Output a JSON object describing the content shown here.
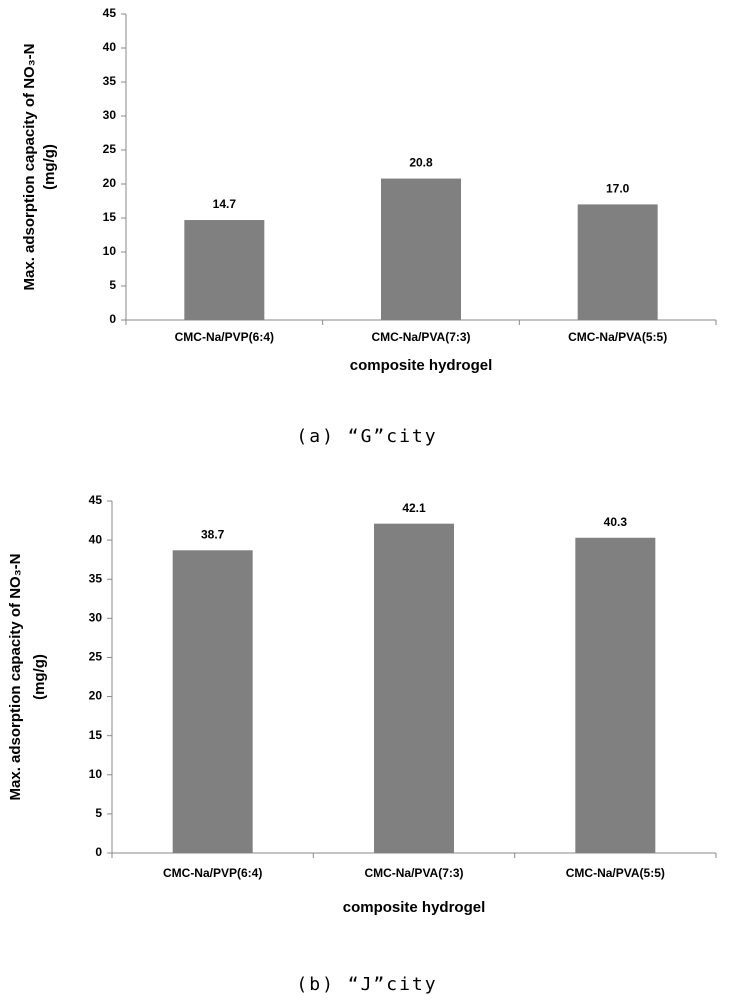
{
  "chart_data": [
    {
      "type": "bar",
      "ylabel": [
        "Max. adsorption capacity of NO₃-N",
        "(mg/g)"
      ],
      "xlabel": "composite hydrogel",
      "categories": [
        "CMC-Na/PVP(6:4)",
        "CMC-Na/PVA(7:3)",
        "CMC-Na/PVA(5:5)"
      ],
      "values": [
        14.7,
        20.8,
        17.0
      ],
      "value_labels": [
        "14.7",
        "20.8",
        "17.0"
      ],
      "color": "#808080",
      "ylim": [
        0,
        45
      ],
      "yticks": [
        0,
        5,
        10,
        15,
        20,
        25,
        30,
        35,
        40,
        45
      ],
      "grid": false,
      "caption": "(a) “G”city"
    },
    {
      "type": "bar",
      "ylabel": [
        "Max. adsorption capacity of NO₃-N",
        "(mg/g)"
      ],
      "xlabel": "composite hydrogel",
      "categories": [
        "CMC-Na/PVP(6:4)",
        "CMC-Na/PVA(7:3)",
        "CMC-Na/PVA(5:5)"
      ],
      "values": [
        38.7,
        42.1,
        40.3
      ],
      "color": "#808080",
      "ylim": [
        0,
        45
      ],
      "yticks": [
        0,
        5,
        10,
        15,
        20,
        25,
        30,
        35,
        40,
        45
      ],
      "grid": false,
      "caption": "(b) “J”city"
    }
  ]
}
